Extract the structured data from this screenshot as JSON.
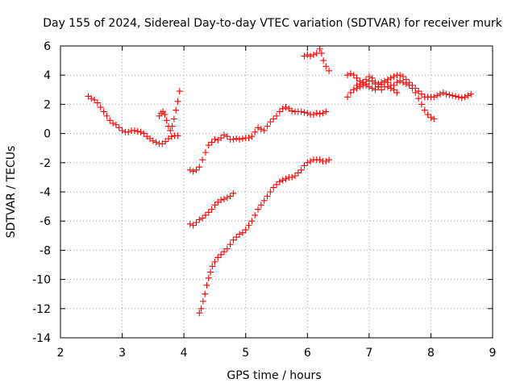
{
  "chart_data": {
    "type": "scatter",
    "title": "Day 155 of 2024, Sidereal Day-to-day VTEC variation (SDTVAR) for receiver murk",
    "xlabel": "GPS time / hours",
    "ylabel": "SDTVAR / TECUs",
    "xlim": [
      2,
      9
    ],
    "ylim": [
      -14,
      6
    ],
    "xticks": [
      2,
      3,
      4,
      5,
      6,
      7,
      8,
      9
    ],
    "yticks": [
      -14,
      -12,
      -10,
      -8,
      -6,
      -4,
      -2,
      0,
      2,
      4,
      6
    ],
    "grid": true,
    "legend": "none",
    "marker": "+",
    "color": "#ff0000",
    "series": [
      {
        "points": [
          [
            2.45,
            2.55
          ],
          [
            2.5,
            2.4
          ],
          [
            2.55,
            2.3
          ],
          [
            2.6,
            2.1
          ],
          [
            2.65,
            1.8
          ],
          [
            2.7,
            1.5
          ],
          [
            2.75,
            1.2
          ],
          [
            2.8,
            0.9
          ],
          [
            2.85,
            0.7
          ],
          [
            2.9,
            0.6
          ],
          [
            2.95,
            0.4
          ],
          [
            3.0,
            0.2
          ],
          [
            3.05,
            0.1
          ],
          [
            3.1,
            0.1
          ],
          [
            3.15,
            0.2
          ],
          [
            3.2,
            0.2
          ],
          [
            3.25,
            0.15
          ],
          [
            3.3,
            0.1
          ],
          [
            3.35,
            0.0
          ],
          [
            3.4,
            -0.2
          ],
          [
            3.45,
            -0.35
          ],
          [
            3.5,
            -0.5
          ],
          [
            3.55,
            -0.6
          ],
          [
            3.6,
            -0.7
          ],
          [
            3.65,
            -0.7
          ],
          [
            3.7,
            -0.55
          ],
          [
            3.75,
            -0.35
          ],
          [
            3.8,
            -0.2
          ],
          [
            3.85,
            -0.15
          ],
          [
            3.9,
            -0.15
          ]
        ]
      },
      {
        "points": [
          [
            3.6,
            1.2
          ],
          [
            3.63,
            1.4
          ],
          [
            3.66,
            1.5
          ],
          [
            3.69,
            1.3
          ],
          [
            3.72,
            0.9
          ],
          [
            3.75,
            0.5
          ],
          [
            3.78,
            0.2
          ],
          [
            3.81,
            0.5
          ],
          [
            3.84,
            1.0
          ],
          [
            3.87,
            1.6
          ],
          [
            3.9,
            2.2
          ],
          [
            3.93,
            2.9
          ]
        ]
      },
      {
        "points": [
          [
            4.1,
            -2.5
          ],
          [
            4.15,
            -2.6
          ],
          [
            4.2,
            -2.5
          ],
          [
            4.25,
            -2.3
          ],
          [
            4.3,
            -1.8
          ],
          [
            4.35,
            -1.3
          ],
          [
            4.4,
            -0.8
          ],
          [
            4.45,
            -0.6
          ],
          [
            4.5,
            -0.4
          ],
          [
            4.55,
            -0.45
          ],
          [
            4.6,
            -0.3
          ],
          [
            4.65,
            -0.1
          ],
          [
            4.7,
            -0.2
          ],
          [
            4.75,
            -0.4
          ],
          [
            4.8,
            -0.4
          ],
          [
            4.85,
            -0.35
          ],
          [
            4.9,
            -0.4
          ],
          [
            4.95,
            -0.35
          ],
          [
            5.0,
            -0.3
          ],
          [
            5.05,
            -0.3
          ],
          [
            5.1,
            -0.2
          ],
          [
            5.15,
            0.1
          ],
          [
            5.2,
            0.4
          ],
          [
            5.25,
            0.3
          ],
          [
            5.3,
            0.2
          ],
          [
            5.35,
            0.5
          ],
          [
            5.4,
            0.8
          ],
          [
            5.45,
            1.0
          ],
          [
            5.5,
            1.2
          ],
          [
            5.55,
            1.5
          ],
          [
            5.6,
            1.7
          ],
          [
            5.65,
            1.8
          ],
          [
            5.7,
            1.7
          ],
          [
            5.75,
            1.55
          ],
          [
            5.8,
            1.5
          ],
          [
            5.85,
            1.5
          ],
          [
            5.9,
            1.5
          ],
          [
            5.95,
            1.45
          ],
          [
            6.0,
            1.4
          ],
          [
            6.05,
            1.3
          ],
          [
            6.1,
            1.3
          ],
          [
            6.15,
            1.4
          ],
          [
            6.2,
            1.35
          ],
          [
            6.25,
            1.4
          ],
          [
            6.3,
            1.5
          ]
        ]
      },
      {
        "points": [
          [
            4.1,
            -6.2
          ],
          [
            4.15,
            -6.3
          ],
          [
            4.2,
            -6.1
          ],
          [
            4.25,
            -5.9
          ],
          [
            4.3,
            -5.8
          ],
          [
            4.35,
            -5.6
          ],
          [
            4.4,
            -5.4
          ],
          [
            4.45,
            -5.2
          ],
          [
            4.5,
            -4.9
          ],
          [
            4.55,
            -4.7
          ],
          [
            4.6,
            -4.55
          ],
          [
            4.65,
            -4.5
          ],
          [
            4.7,
            -4.4
          ],
          [
            4.75,
            -4.3
          ],
          [
            4.8,
            -4.1
          ]
        ]
      },
      {
        "points": [
          [
            4.25,
            -12.3
          ],
          [
            4.28,
            -12.0
          ],
          [
            4.31,
            -11.5
          ],
          [
            4.34,
            -11.0
          ],
          [
            4.37,
            -10.4
          ],
          [
            4.4,
            -9.9
          ],
          [
            4.43,
            -9.5
          ],
          [
            4.46,
            -9.1
          ],
          [
            4.5,
            -8.8
          ],
          [
            4.55,
            -8.5
          ],
          [
            4.6,
            -8.3
          ],
          [
            4.65,
            -8.1
          ],
          [
            4.7,
            -7.9
          ],
          [
            4.75,
            -7.6
          ],
          [
            4.8,
            -7.3
          ],
          [
            4.85,
            -7.1
          ],
          [
            4.9,
            -6.9
          ],
          [
            4.95,
            -6.8
          ],
          [
            5.0,
            -6.6
          ],
          [
            5.05,
            -6.3
          ],
          [
            5.1,
            -6.0
          ],
          [
            5.15,
            -5.6
          ],
          [
            5.2,
            -5.2
          ],
          [
            5.25,
            -4.9
          ],
          [
            5.3,
            -4.6
          ],
          [
            5.35,
            -4.3
          ],
          [
            5.4,
            -4.0
          ],
          [
            5.45,
            -3.7
          ],
          [
            5.5,
            -3.5
          ],
          [
            5.55,
            -3.3
          ],
          [
            5.6,
            -3.2
          ],
          [
            5.65,
            -3.1
          ],
          [
            5.7,
            -3.0
          ],
          [
            5.75,
            -3.0
          ],
          [
            5.8,
            -2.9
          ],
          [
            5.85,
            -2.7
          ],
          [
            5.9,
            -2.5
          ],
          [
            5.95,
            -2.2
          ],
          [
            6.0,
            -2.0
          ],
          [
            6.05,
            -1.9
          ],
          [
            6.1,
            -1.8
          ],
          [
            6.15,
            -1.8
          ],
          [
            6.2,
            -1.8
          ],
          [
            6.25,
            -1.9
          ],
          [
            6.3,
            -1.9
          ],
          [
            6.35,
            -1.8
          ]
        ]
      },
      {
        "points": [
          [
            5.95,
            5.3
          ],
          [
            6.0,
            5.4
          ],
          [
            6.05,
            5.3
          ],
          [
            6.1,
            5.4
          ],
          [
            6.15,
            5.5
          ],
          [
            6.2,
            5.8
          ],
          [
            6.23,
            5.5
          ],
          [
            6.26,
            5.0
          ],
          [
            6.3,
            4.6
          ],
          [
            6.35,
            4.3
          ]
        ]
      },
      {
        "points": [
          [
            6.65,
            4.0
          ],
          [
            6.7,
            4.1
          ],
          [
            6.75,
            4.0
          ],
          [
            6.8,
            3.8
          ],
          [
            6.85,
            3.6
          ],
          [
            6.9,
            3.5
          ],
          [
            6.95,
            3.7
          ],
          [
            7.0,
            3.9
          ],
          [
            7.05,
            3.6
          ],
          [
            7.1,
            3.4
          ],
          [
            7.15,
            3.4
          ],
          [
            7.2,
            3.5
          ],
          [
            7.25,
            3.6
          ],
          [
            7.3,
            3.7
          ],
          [
            7.35,
            3.8
          ],
          [
            7.4,
            3.9
          ],
          [
            7.45,
            4.0
          ],
          [
            7.5,
            4.0
          ],
          [
            7.55,
            3.9
          ],
          [
            7.6,
            3.7
          ],
          [
            7.65,
            3.5
          ],
          [
            7.7,
            3.3
          ],
          [
            7.75,
            3.1
          ],
          [
            7.8,
            2.9
          ],
          [
            7.85,
            2.7
          ],
          [
            7.9,
            2.5
          ],
          [
            7.95,
            2.5
          ],
          [
            8.0,
            2.5
          ],
          [
            8.05,
            2.5
          ],
          [
            8.1,
            2.6
          ],
          [
            8.15,
            2.7
          ],
          [
            8.2,
            2.8
          ],
          [
            8.25,
            2.7
          ],
          [
            8.3,
            2.65
          ],
          [
            8.35,
            2.6
          ],
          [
            8.4,
            2.55
          ],
          [
            8.45,
            2.5
          ],
          [
            8.5,
            2.45
          ],
          [
            8.55,
            2.5
          ],
          [
            8.6,
            2.6
          ],
          [
            8.65,
            2.7
          ]
        ]
      },
      {
        "points": [
          [
            6.65,
            2.5
          ],
          [
            6.7,
            2.8
          ],
          [
            6.75,
            3.0
          ],
          [
            6.8,
            3.1
          ],
          [
            6.85,
            3.2
          ],
          [
            6.9,
            3.3
          ],
          [
            6.95,
            3.4
          ],
          [
            7.0,
            3.2
          ],
          [
            7.05,
            3.1
          ],
          [
            7.1,
            3.0
          ],
          [
            7.15,
            3.2
          ],
          [
            7.2,
            3.35
          ],
          [
            7.25,
            3.5
          ],
          [
            7.3,
            3.2
          ],
          [
            7.35,
            3.1
          ],
          [
            7.4,
            3.3
          ],
          [
            7.45,
            3.5
          ],
          [
            7.5,
            3.6
          ],
          [
            7.55,
            3.5
          ],
          [
            7.6,
            3.4
          ],
          [
            7.65,
            3.3
          ],
          [
            7.7,
            3.1
          ],
          [
            7.75,
            2.8
          ],
          [
            7.8,
            2.4
          ],
          [
            7.85,
            2.0
          ],
          [
            7.9,
            1.6
          ],
          [
            7.95,
            1.3
          ],
          [
            8.0,
            1.1
          ],
          [
            8.05,
            1.0
          ]
        ]
      },
      {
        "points": [
          [
            6.8,
            3.3
          ],
          [
            6.85,
            3.4
          ],
          [
            6.9,
            3.5
          ],
          [
            6.95,
            3.3
          ],
          [
            7.0,
            3.6
          ],
          [
            7.05,
            3.8
          ],
          [
            7.1,
            3.5
          ],
          [
            7.15,
            3.2
          ],
          [
            7.2,
            3.0
          ],
          [
            7.25,
            3.2
          ],
          [
            7.3,
            3.5
          ],
          [
            7.35,
            3.3
          ],
          [
            7.4,
            3.0
          ],
          [
            7.45,
            2.8
          ]
        ]
      }
    ]
  }
}
